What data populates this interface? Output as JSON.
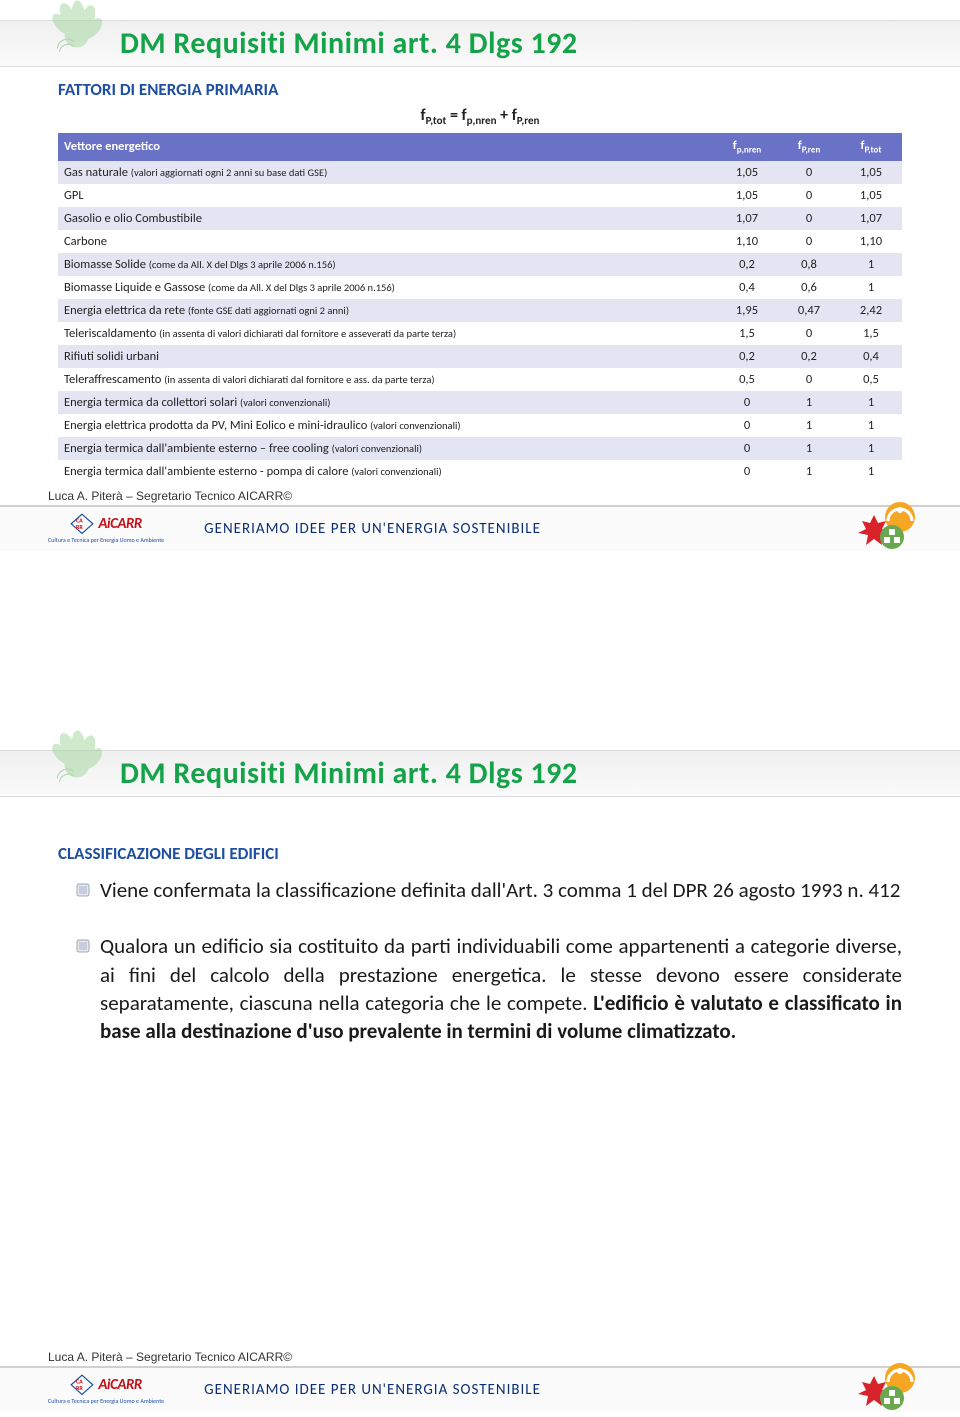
{
  "slide1": {
    "title": "DM Requisiti Minimi art. 4 Dlgs 192",
    "section_label": "FATTORI DI ENERGIA PRIMARIA",
    "formula_html": "f<sub>P,tot</sub> = f<sub>p,nren</sub> + f<sub>P,ren</sub>",
    "table": {
      "headers": {
        "vector": "Vettore energetico",
        "c1_html": "f<sub>p,nren</sub>",
        "c2_html": "f<sub>P,ren</sub>",
        "c3_html": "f<sub>P,tot</sub>"
      },
      "rows": [
        {
          "label_main": "Gas naturale ",
          "label_small": "(valori aggiornati ogni 2 anni su base dati GSE)",
          "v": [
            "1,05",
            "0",
            "1,05"
          ]
        },
        {
          "label_main": "GPL",
          "label_small": "",
          "v": [
            "1,05",
            "0",
            "1,05"
          ]
        },
        {
          "label_main": "Gasolio e olio Combustibile",
          "label_small": "",
          "v": [
            "1,07",
            "0",
            "1,07"
          ]
        },
        {
          "label_main": "Carbone",
          "label_small": "",
          "v": [
            "1,10",
            "0",
            "1,10"
          ]
        },
        {
          "label_main": "Biomasse Solide ",
          "label_small": "(come da All. X del Dlgs 3 aprile 2006 n.156)",
          "v": [
            "0,2",
            "0,8",
            "1"
          ]
        },
        {
          "label_main": "Biomasse Liquide e Gassose ",
          "label_small": "(come da All. X del Dlgs 3 aprile 2006 n.156)",
          "v": [
            "0,4",
            "0,6",
            "1"
          ]
        },
        {
          "label_main": "Energia elettrica da rete ",
          "label_small": "(fonte GSE dati aggiornati ogni 2 anni)",
          "v": [
            "1,95",
            "0,47",
            "2,42"
          ]
        },
        {
          "label_main": "Teleriscaldamento ",
          "label_small": "(in assenta di valori dichiarati dal fornitore e asseverati da parte terza)",
          "v": [
            "1,5",
            "0",
            "1,5"
          ]
        },
        {
          "label_main": "Rifiuti solidi urbani",
          "label_small": "",
          "v": [
            "0,2",
            "0,2",
            "0,4"
          ]
        },
        {
          "label_main": "Teleraffrescamento ",
          "label_small": "(in assenta di valori dichiarati dal fornitore e ass. da parte terza)",
          "v": [
            "0,5",
            "0",
            "0,5"
          ]
        },
        {
          "label_main": "Energia termica da collettori solari ",
          "label_small": "(valori convenzionali)",
          "v": [
            "0",
            "1",
            "1"
          ]
        },
        {
          "label_main": "Energia elettrica prodotta da PV, Mini Eolico e mini-idraulico ",
          "label_small": "(valori convenzionali)",
          "v": [
            "0",
            "1",
            "1"
          ]
        },
        {
          "label_main": "Energia termica dall'ambiente esterno – free cooling ",
          "label_small": "(valori convenzionali)",
          "v": [
            "0",
            "1",
            "1"
          ]
        },
        {
          "label_main": "Energia termica dall'ambiente esterno  - pompa di calore ",
          "label_small": "(valori convenzionali)",
          "v": [
            "0",
            "1",
            "1"
          ]
        }
      ]
    }
  },
  "slide2": {
    "title": "DM Requisiti Minimi art. 4 Dlgs 192",
    "section_label": "CLASSIFICAZIONE DEGLI EDIFICI",
    "bullets": [
      {
        "html": "Viene confermata la classificazione definita dall'Art. 3 comma 1 del DPR 26 agosto 1993 n. 412"
      },
      {
        "html": "Qualora un edificio sia costituito da parti individuabili come appartenenti a categorie diverse, ai fini del calcolo della prestazione energetica. le stesse devono essere considerate separatamente, ciascuna nella categoria che le compete. <b>L'edificio è valutato e classificato in base alla destinazione d'uso prevalente in termini di volume climatizzato.</b>"
      }
    ]
  },
  "footer": {
    "credit": "Luca A. Piterà – Segretario Tecnico AICARR©",
    "logo_text": "AiCARR",
    "logo_subtext": "Cultura e Tecnica per Energia Uomo e Ambiente",
    "tagline": "GENERIAMO IDEE PER UN'ENERGIA SOSTENIBILE"
  },
  "colors": {
    "title_green": "#15a34a",
    "section_blue": "#1f4fa0",
    "header_bg": "#6a72c8",
    "row_odd": "#e3e5f3",
    "logo_red": "#c41016",
    "tagline_navy": "#0b2f74"
  }
}
